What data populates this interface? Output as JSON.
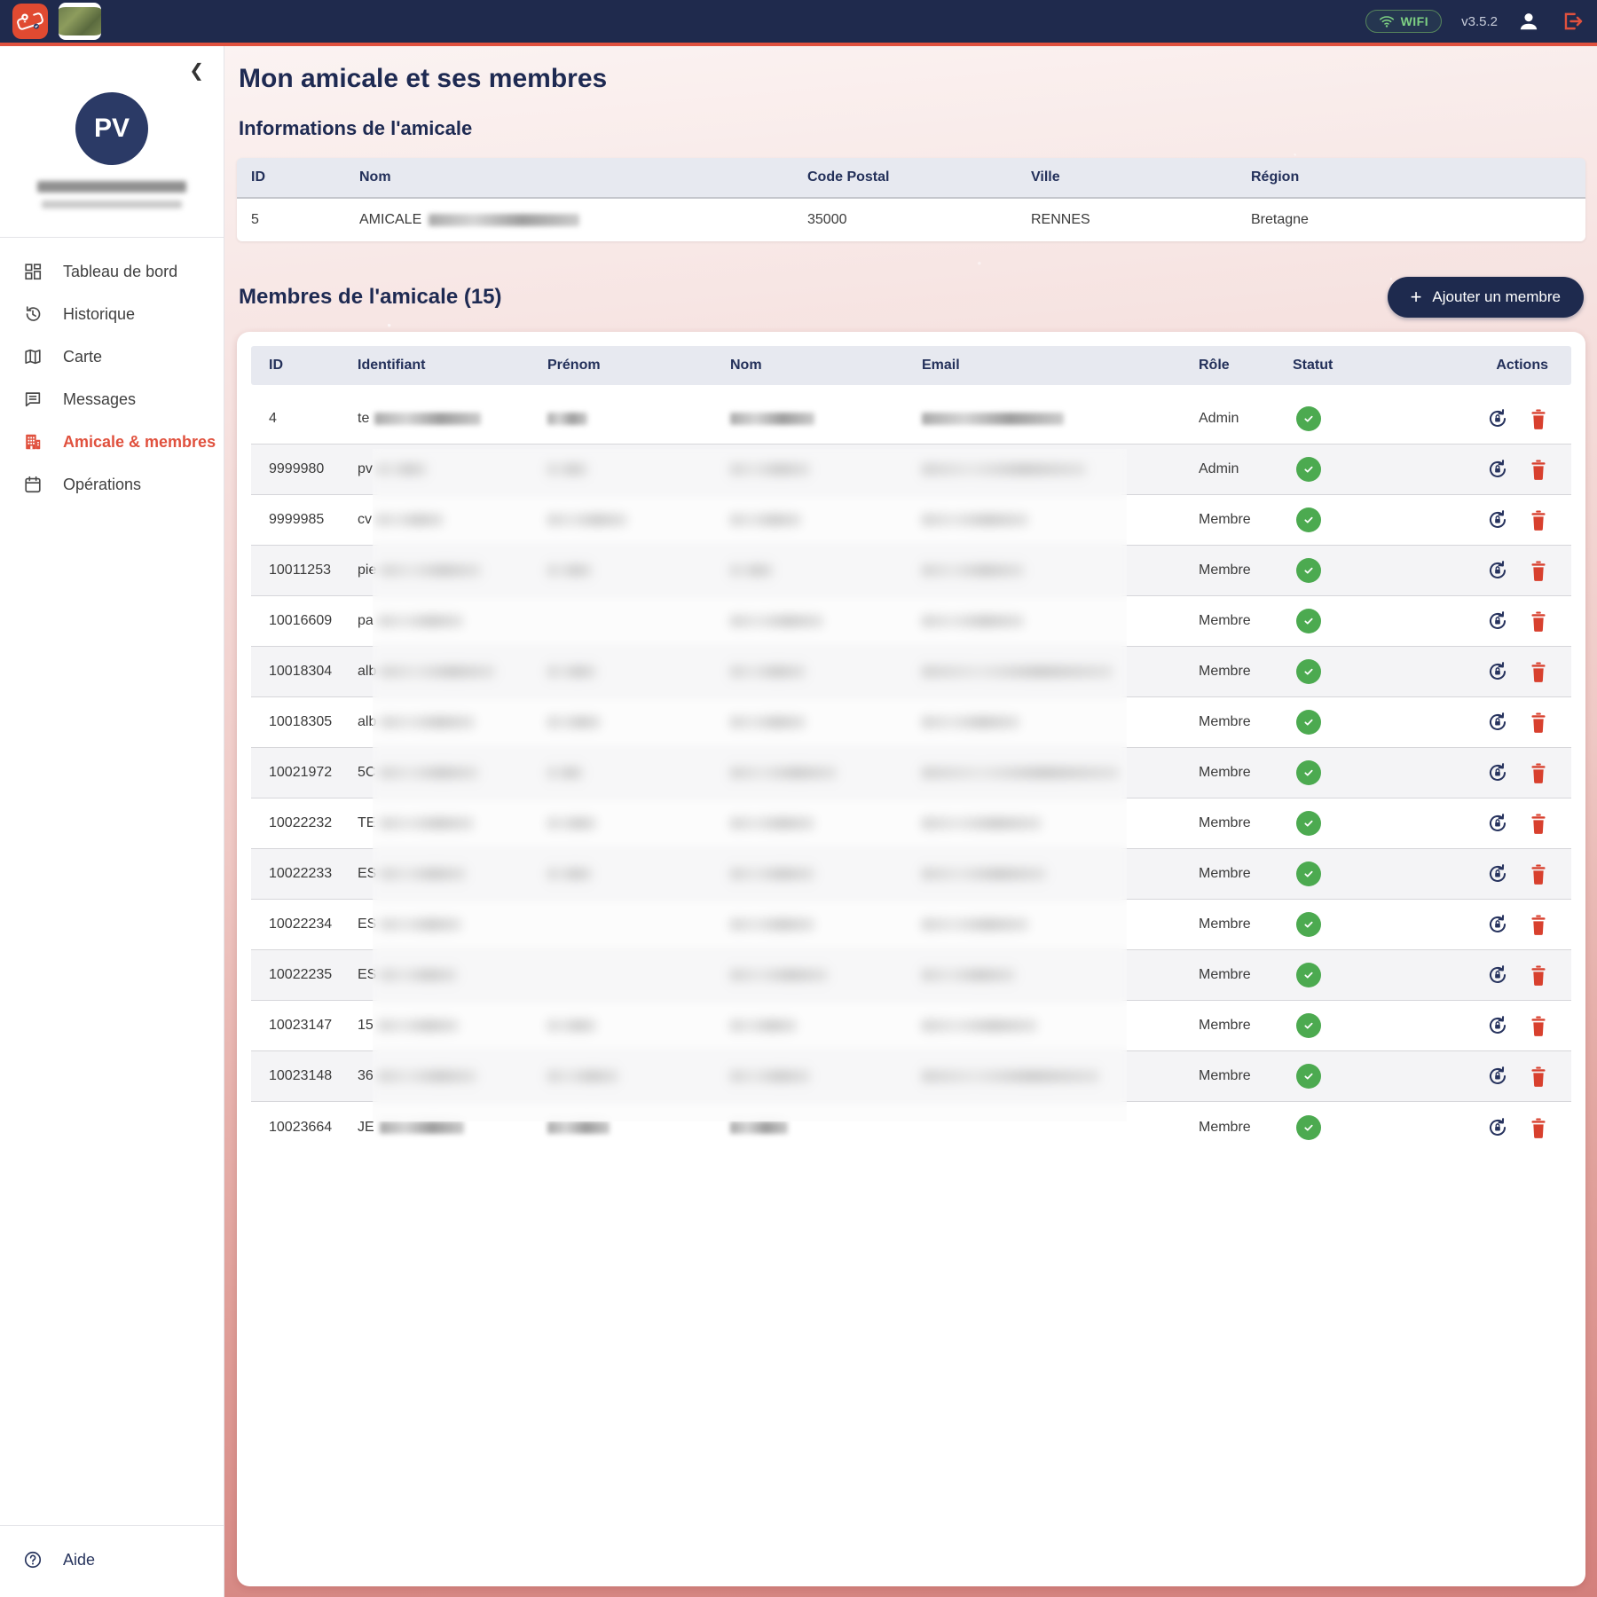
{
  "topbar": {
    "wifi_label": "WIFI",
    "version": "v3.5.2"
  },
  "sidebar": {
    "avatar_initials": "PV",
    "collapse_glyph": "❮",
    "items": [
      {
        "label": "Tableau de bord",
        "active": false
      },
      {
        "label": "Historique",
        "active": false
      },
      {
        "label": "Carte",
        "active": false
      },
      {
        "label": "Messages",
        "active": false
      },
      {
        "label": "Amicale & membres",
        "active": true
      },
      {
        "label": "Opérations",
        "active": false
      }
    ],
    "help_label": "Aide"
  },
  "main": {
    "page_title": "Mon amicale et ses membres",
    "info_section": {
      "title": "Informations de l'amicale",
      "headers": [
        "ID",
        "Nom",
        "Code Postal",
        "Ville",
        "Région"
      ],
      "row": {
        "id": "5",
        "nom_prefix": "AMICALE",
        "nom_redacted_width": 170,
        "code_postal": "35000",
        "ville": "RENNES",
        "region": "Bretagne"
      }
    },
    "members_section": {
      "title": "Membres de l'amicale (15)",
      "add_button_label": "Ajouter un membre",
      "headers": [
        "ID",
        "Identifiant",
        "Prénom",
        "Nom",
        "Email",
        "Rôle",
        "Statut",
        "Actions"
      ],
      "status_active_label": "active",
      "rows": [
        {
          "id": "4",
          "identifiant_prefix": "te",
          "role": "Admin",
          "status": "active",
          "redacted_widths": {
            "identifiant": 120,
            "prenom": 45,
            "nom": 95,
            "email": 160
          }
        },
        {
          "id": "9999980",
          "identifiant_prefix": "pv",
          "role": "Admin",
          "status": "active",
          "redacted_widths": {
            "identifiant": 55,
            "prenom": 45,
            "nom": 90,
            "email": 185
          }
        },
        {
          "id": "9999985",
          "identifiant_prefix": "cv",
          "role": "Membre",
          "status": "active",
          "redacted_widths": {
            "identifiant": 75,
            "prenom": 90,
            "nom": 80,
            "email": 120
          }
        },
        {
          "id": "10011253",
          "identifiant_prefix": "pie",
          "role": "Membre",
          "status": "active",
          "redacted_widths": {
            "identifiant": 112,
            "prenom": 50,
            "nom": 48,
            "email": 115
          }
        },
        {
          "id": "10016609",
          "identifiant_prefix": "pa",
          "role": "Membre",
          "status": "active",
          "redacted_widths": {
            "identifiant": 95,
            "prenom": 0,
            "nom": 105,
            "email": 115
          }
        },
        {
          "id": "10018304",
          "identifiant_prefix": "alb",
          "role": "Membre",
          "status": "active",
          "redacted_widths": {
            "identifiant": 128,
            "prenom": 55,
            "nom": 85,
            "email": 215
          }
        },
        {
          "id": "10018305",
          "identifiant_prefix": "alb",
          "role": "Membre",
          "status": "active",
          "redacted_widths": {
            "identifiant": 105,
            "prenom": 60,
            "nom": 85,
            "email": 110
          }
        },
        {
          "id": "10021972",
          "identifiant_prefix": "5C",
          "role": "Membre",
          "status": "active",
          "redacted_widths": {
            "identifiant": 110,
            "prenom": 40,
            "nom": 120,
            "email": 222
          }
        },
        {
          "id": "10022232",
          "identifiant_prefix": "TE",
          "role": "Membre",
          "status": "active",
          "redacted_widths": {
            "identifiant": 105,
            "prenom": 55,
            "nom": 95,
            "email": 135
          }
        },
        {
          "id": "10022233",
          "identifiant_prefix": "ES",
          "role": "Membre",
          "status": "active",
          "redacted_widths": {
            "identifiant": 95,
            "prenom": 50,
            "nom": 95,
            "email": 140
          }
        },
        {
          "id": "10022234",
          "identifiant_prefix": "ES",
          "role": "Membre",
          "status": "active",
          "redacted_widths": {
            "identifiant": 90,
            "prenom": 0,
            "nom": 95,
            "email": 120
          }
        },
        {
          "id": "10022235",
          "identifiant_prefix": "ES",
          "role": "Membre",
          "status": "active",
          "redacted_widths": {
            "identifiant": 85,
            "prenom": 0,
            "nom": 110,
            "email": 105
          }
        },
        {
          "id": "10023147",
          "identifiant_prefix": "15",
          "role": "Membre",
          "status": "active",
          "redacted_widths": {
            "identifiant": 90,
            "prenom": 55,
            "nom": 75,
            "email": 130
          }
        },
        {
          "id": "10023148",
          "identifiant_prefix": "36",
          "role": "Membre",
          "status": "active",
          "redacted_widths": {
            "identifiant": 110,
            "prenom": 80,
            "nom": 90,
            "email": 200
          }
        },
        {
          "id": "10023664",
          "identifiant_prefix": "JE",
          "role": "Membre",
          "status": "active",
          "redacted_widths": {
            "identifiant": 95,
            "prenom": 70,
            "nom": 65,
            "email": 0
          }
        }
      ]
    }
  },
  "colors": {
    "accent": "#E0513E",
    "navy": "#1F2A4D",
    "status_green": "#4CAA50"
  }
}
